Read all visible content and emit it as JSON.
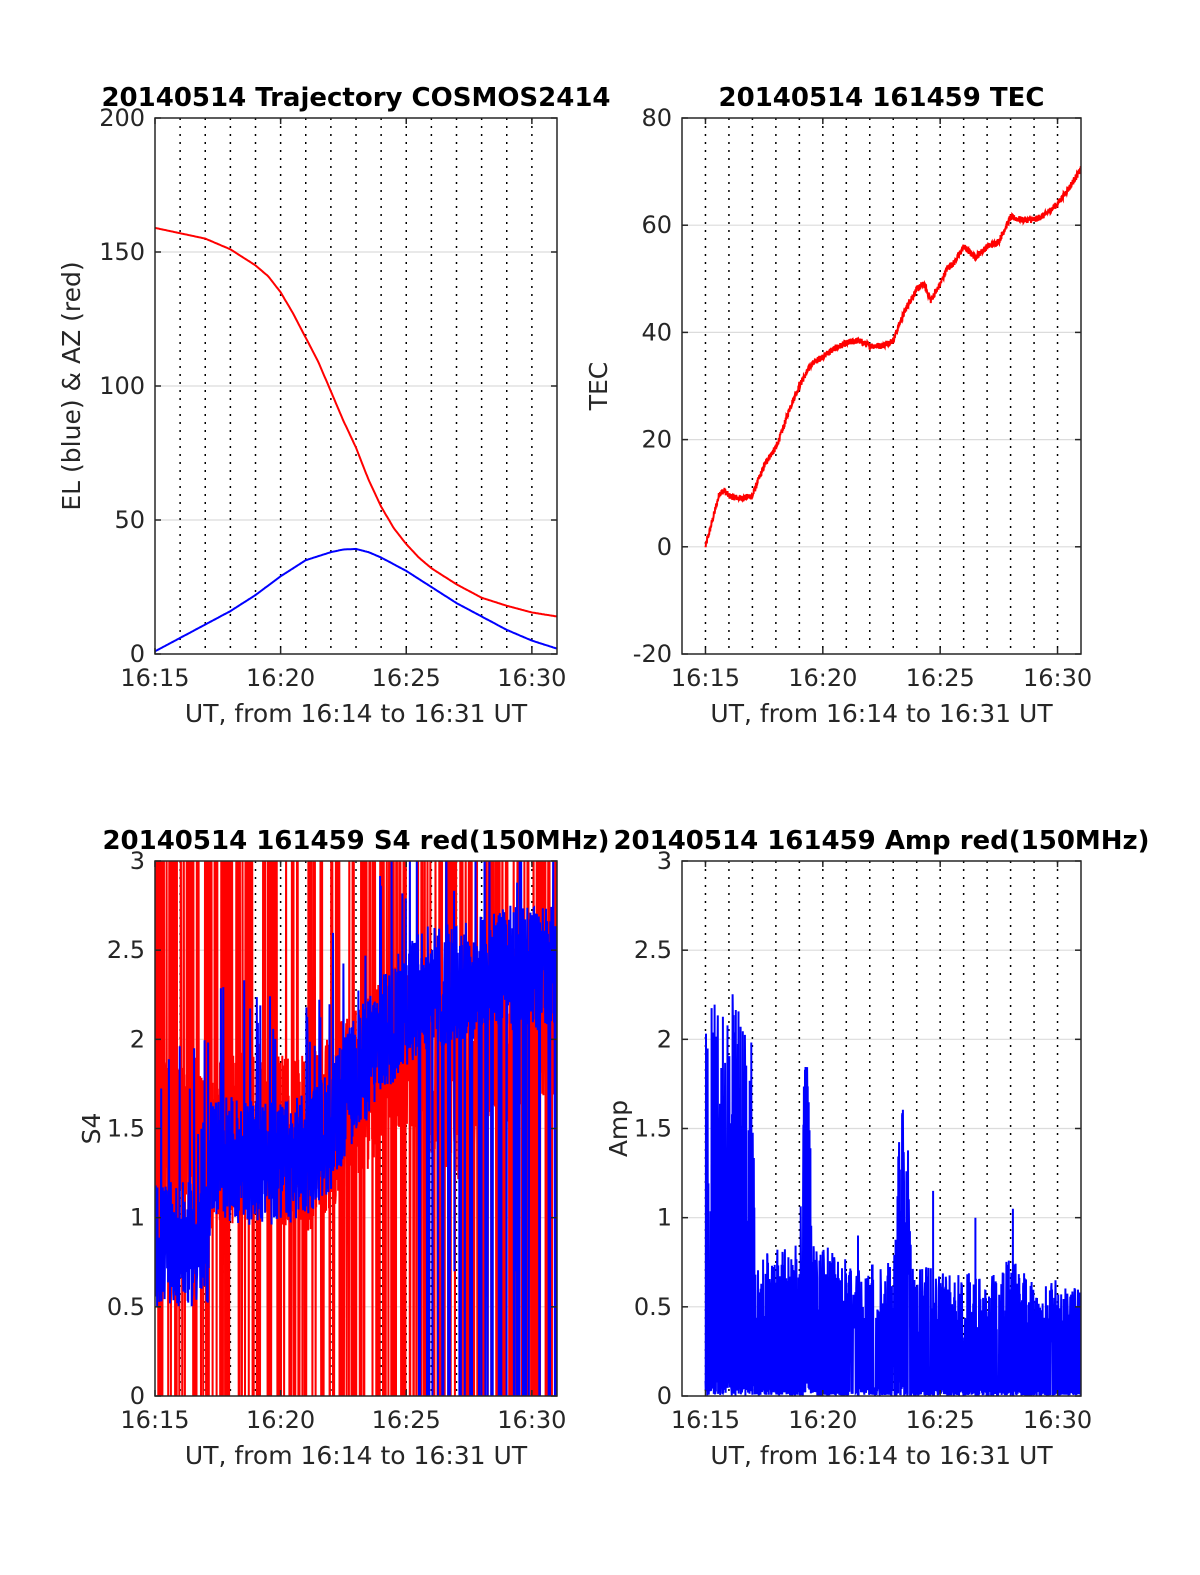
{
  "chart_data": [
    {
      "id": "traj",
      "type": "line",
      "title": "20140514 Trajectory COSMOS2414",
      "xlabel": "UT, from 16:14 to 16:31 UT",
      "ylabel": "EL (blue) & AZ (red)",
      "xlim": [
        15,
        31
      ],
      "ylim": [
        0,
        200
      ],
      "xticks": [
        15,
        20,
        25,
        30
      ],
      "xticklabels": [
        "16:15",
        "16:20",
        "16:25",
        "16:30"
      ],
      "yticks": [
        0,
        50,
        100,
        150,
        200
      ],
      "yticklabels": [
        "0",
        "50",
        "100",
        "150",
        "200"
      ],
      "grid": true,
      "series": [
        {
          "color": "#ff0000",
          "x": [
            15,
            16,
            17,
            18,
            19,
            19.5,
            20,
            20.5,
            21,
            21.5,
            22,
            22.5,
            23,
            23.5,
            24,
            24.5,
            25,
            25.5,
            26,
            27,
            28,
            29,
            30,
            31
          ],
          "y": [
            159,
            157,
            155,
            151,
            145,
            141,
            135,
            127,
            118,
            109,
            98,
            87,
            77,
            65,
            55,
            47,
            41,
            36,
            32,
            26,
            21,
            18,
            15.5,
            14
          ]
        },
        {
          "color": "#0000ff",
          "x": [
            15,
            16,
            17,
            18,
            19,
            20,
            21,
            22,
            22.5,
            23,
            23.5,
            24,
            25,
            26,
            27,
            28,
            29,
            30,
            31
          ],
          "y": [
            1,
            6,
            11,
            16,
            22,
            29,
            35,
            38,
            39,
            39.2,
            38,
            36,
            31,
            25,
            19,
            14,
            9,
            5,
            2
          ]
        }
      ]
    },
    {
      "id": "tec",
      "type": "line",
      "title": "20140514 161459 TEC",
      "xlabel": "UT, from 16:14 to 16:31 UT",
      "ylabel": "TEC",
      "xlim": [
        14,
        31
      ],
      "ylim": [
        -20,
        80
      ],
      "xticks": [
        15,
        20,
        25,
        30
      ],
      "xticklabels": [
        "16:15",
        "16:20",
        "16:25",
        "16:30"
      ],
      "yticks": [
        -20,
        0,
        20,
        40,
        60,
        80
      ],
      "yticklabels": [
        "-20",
        "0",
        "20",
        "40",
        "60",
        "80"
      ],
      "grid": true,
      "noise": 0.6,
      "series": [
        {
          "color": "#ff0000",
          "x": [
            15,
            15.3,
            15.6,
            15.8,
            16,
            16.5,
            17,
            17.3,
            17.6,
            18,
            18.3,
            18.6,
            19,
            19.5,
            20,
            20.5,
            21,
            21.5,
            22,
            22.5,
            23,
            23.3,
            23.6,
            24,
            24.3,
            24.6,
            25,
            25.3,
            25.6,
            26,
            26.5,
            27,
            27.5,
            28,
            28.5,
            29,
            29.5,
            30,
            30.5,
            31
          ],
          "y": [
            0,
            5,
            10,
            10.5,
            9.5,
            9,
            9.5,
            13,
            16,
            18.5,
            22,
            26,
            30,
            34,
            35.5,
            37,
            38,
            38.5,
            37.5,
            37.5,
            38.5,
            42,
            45,
            48,
            49,
            46,
            49,
            52,
            53,
            56,
            54,
            56,
            57,
            61.5,
            61,
            61,
            62,
            64,
            67,
            70.5
          ]
        }
      ]
    },
    {
      "id": "s4",
      "type": "line",
      "title": "20140514 161459 S4 red(150MHz)",
      "xlabel": "UT, from 16:14 to 16:31 UT",
      "ylabel": "S4",
      "xlim": [
        15,
        31
      ],
      "ylim": [
        0,
        3
      ],
      "xticks": [
        15,
        20,
        25,
        30
      ],
      "xticklabels": [
        "16:15",
        "16:20",
        "16:25",
        "16:30"
      ],
      "yticks": [
        0,
        0.5,
        1,
        1.5,
        2,
        2.5,
        3
      ],
      "yticklabels": [
        "0",
        "0.5",
        "1",
        "1.5",
        "2",
        "2.5",
        "3"
      ],
      "grid": true,
      "series": [
        {
          "color": "#ff0000",
          "style": "spikes",
          "x_range": [
            15,
            31
          ],
          "base_points": [
            [
              15,
              1.4
            ],
            [
              17,
              1.4
            ],
            [
              19,
              1.5
            ],
            [
              21,
              1.4
            ],
            [
              23,
              1.7
            ],
            [
              25,
              2.0
            ],
            [
              27,
              1.7
            ],
            [
              29,
              2.0
            ],
            [
              31,
              2.2
            ]
          ],
          "base_amp": 0.5,
          "spike_rate": 0.25
        },
        {
          "color": "#0000ff",
          "style": "noisy",
          "x_range": [
            15,
            31
          ],
          "base_points": [
            [
              15,
              0.85
            ],
            [
              17.1,
              0.85
            ],
            [
              17.2,
              1.35
            ],
            [
              19,
              1.3
            ],
            [
              20,
              1.3
            ],
            [
              21,
              1.35
            ],
            [
              22,
              1.5
            ],
            [
              23,
              1.8
            ],
            [
              24,
              2.0
            ],
            [
              25,
              2.2
            ],
            [
              26,
              2.3
            ],
            [
              27,
              2.3
            ],
            [
              28,
              2.35
            ],
            [
              29,
              2.4
            ],
            [
              30,
              2.4
            ],
            [
              31,
              2.4
            ]
          ],
          "base_amp": 0.35,
          "drop_after": 25.5,
          "drop_rate": 0.08
        }
      ]
    },
    {
      "id": "amp",
      "type": "line",
      "title": "20140514 161459 Amp red(150MHz)",
      "xlabel": "UT, from 16:14 to 16:31 UT",
      "ylabel": "Amp",
      "xlim": [
        14,
        31
      ],
      "ylim": [
        0,
        3
      ],
      "xticks": [
        15,
        20,
        25,
        30
      ],
      "xticklabels": [
        "16:15",
        "16:20",
        "16:25",
        "16:30"
      ],
      "yticks": [
        0,
        0.5,
        1,
        1.5,
        2,
        2.5,
        3
      ],
      "yticklabels": [
        "0",
        "0.5",
        "1",
        "1.5",
        "2",
        "2.5",
        "3"
      ],
      "grid": true,
      "series": [
        {
          "color": "#0000ff",
          "style": "envelope",
          "x_range": [
            15,
            31
          ],
          "envelope": [
            [
              15,
              2.35
            ],
            [
              15.5,
              2.2
            ],
            [
              16,
              2.3
            ],
            [
              16.5,
              2.2
            ],
            [
              17,
              2.1
            ],
            [
              17.1,
              0.8
            ],
            [
              19,
              0.85
            ],
            [
              19.3,
              2.25
            ],
            [
              19.6,
              0.85
            ],
            [
              20,
              0.85
            ],
            [
              21,
              0.8
            ],
            [
              22,
              0.75
            ],
            [
              23,
              0.8
            ],
            [
              23.5,
              2.1
            ],
            [
              23.8,
              0.75
            ],
            [
              25,
              0.7
            ],
            [
              26,
              0.7
            ],
            [
              27,
              0.65
            ],
            [
              28,
              0.8
            ],
            [
              29,
              0.65
            ],
            [
              30,
              0.65
            ],
            [
              31,
              0.6
            ]
          ],
          "extra_spikes": [
            [
              24.7,
              1.15
            ],
            [
              28.1,
              1.05
            ],
            [
              26.5,
              1.0
            ],
            [
              21.5,
              0.9
            ]
          ]
        }
      ]
    }
  ]
}
